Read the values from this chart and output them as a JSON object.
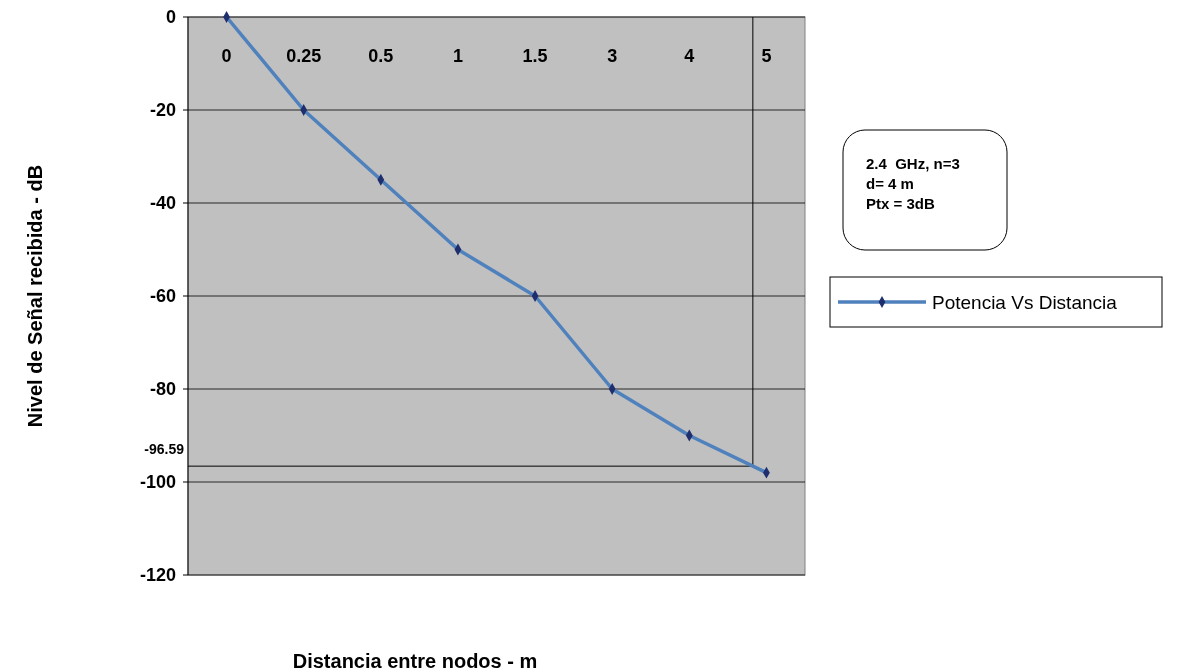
{
  "chart_data": {
    "type": "line",
    "xlabel": "Distancia entre nodos - m",
    "ylabel": "Nivel de Señal recibida - dB",
    "categories": [
      "0",
      "0.25",
      "0.5",
      "1",
      "1.5",
      "3",
      "4",
      "5"
    ],
    "series": [
      {
        "name": "Potencia Vs Distancia",
        "color": "#4f81bd",
        "values": [
          0,
          -20,
          -35,
          -50,
          -60,
          -80,
          -90,
          -98
        ]
      }
    ],
    "ylim": [
      -120,
      0
    ],
    "yticks": [
      0,
      -20,
      -40,
      -60,
      -80,
      -100,
      -120
    ],
    "grid": "y",
    "legend": "right",
    "marker": "diamond",
    "ref_lines": [
      {
        "axis": "y",
        "value": -96.59,
        "label": "-96.59",
        "color": "#000000"
      }
    ],
    "annotations": [
      "2.4  GHz, n=3\nd= 4 m\nPtx = 3dB"
    ]
  }
}
